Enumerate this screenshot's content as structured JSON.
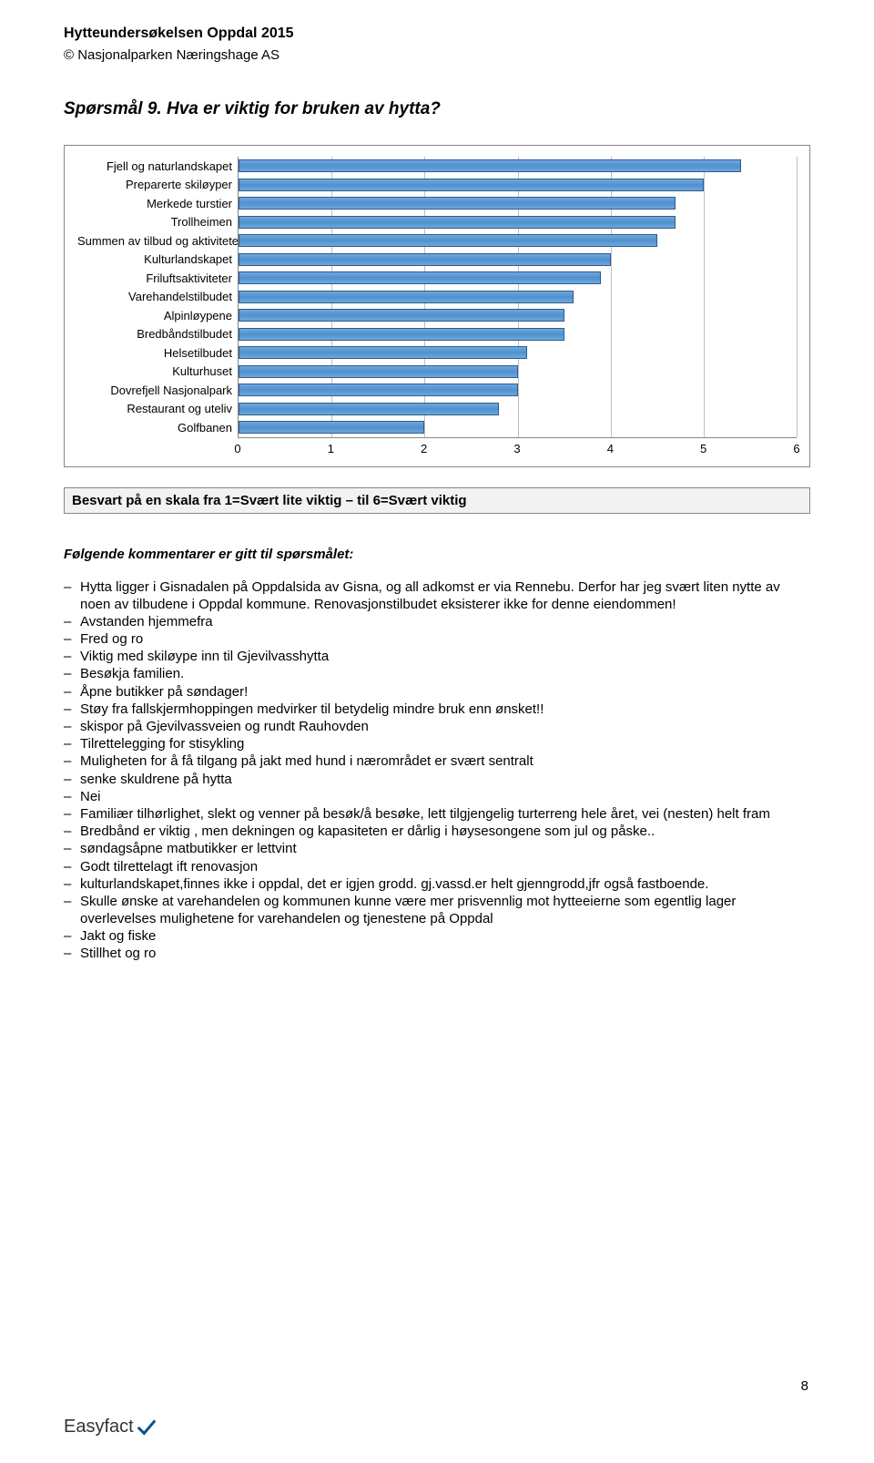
{
  "header": {
    "title": "Hytteundersøkelsen Oppdal 2015",
    "subtitle": "© Nasjonalparken Næringshage AS"
  },
  "question": {
    "title": "Spørsmål 9. Hva er viktig for bruken av hytta?"
  },
  "chart": {
    "type": "bar",
    "xlim": [
      0,
      6
    ],
    "xtick_step": 1,
    "xticks": [
      "0",
      "1",
      "2",
      "3",
      "4",
      "5",
      "6"
    ],
    "bar_color": "#5b9bd5",
    "bar_border": "#2e5c8a",
    "grid_color": "#bfbfbf",
    "axis_color": "#888888",
    "label_fontsize": 13,
    "tick_fontsize": 13,
    "series": [
      {
        "label": "Fjell og naturlandskapet",
        "value": 5.4
      },
      {
        "label": "Preparerte skiløyper",
        "value": 5.0
      },
      {
        "label": "Merkede turstier",
        "value": 4.7
      },
      {
        "label": "Trollheimen",
        "value": 4.7
      },
      {
        "label": "Summen av tilbud og aktiviteter",
        "value": 4.5
      },
      {
        "label": "Kulturlandskapet",
        "value": 4.0
      },
      {
        "label": "Friluftsaktiviteter",
        "value": 3.9
      },
      {
        "label": "Varehandelstilbudet",
        "value": 3.6
      },
      {
        "label": "Alpinløypene",
        "value": 3.5
      },
      {
        "label": "Bredbåndstilbudet",
        "value": 3.5
      },
      {
        "label": "Helsetilbudet",
        "value": 3.1
      },
      {
        "label": "Kulturhuset",
        "value": 3.0
      },
      {
        "label": "Dovrefjell Nasjonalpark",
        "value": 3.0
      },
      {
        "label": "Restaurant og uteliv",
        "value": 2.8
      },
      {
        "label": "Golfbanen",
        "value": 2.0
      }
    ]
  },
  "scale_note": "Besvart på en skala fra 1=Svært lite viktig – til 6=Svært viktig",
  "comments": {
    "heading": "Følgende kommentarer er gitt til spørsmålet:",
    "items": [
      "Hytta ligger i Gisnadalen på Oppdalsida av Gisna, og all adkomst er via Rennebu. Derfor har jeg svært liten nytte av noen av tilbudene i Oppdal kommune. Renovasjonstilbudet eksisterer ikke for denne eiendommen!",
      "Avstanden hjemmefra",
      "Fred og ro",
      "Viktig med skiløype inn til Gjevilvasshytta",
      "Besøkja familien.",
      "Åpne butikker på søndager!",
      "Støy fra fallskjermhoppingen medvirker til betydelig mindre bruk enn ønsket!!",
      "skispor på Gjevilvassveien og rundt Rauhovden",
      "Tilrettelegging for stisykling",
      "Muligheten for å få tilgang på jakt med hund i nærområdet er svært sentralt",
      "senke skuldrene på hytta",
      "Nei",
      "Familiær tilhørlighet, slekt og venner på besøk/å besøke, lett tilgjengelig turterreng hele året, vei (nesten) helt fram",
      "Bredbånd er viktig , men dekningen og kapasiteten er dårlig i høysesongene som jul og påske..",
      "søndagsåpne matbutikker er lettvint",
      "Godt tilrettelagt ift renovasjon",
      "kulturlandskapet,finnes ikke i oppdal, det er igjen grodd. gj.vassd.er helt gjenngrodd,jfr også fastboende.",
      "Skulle ønske at varehandelen og kommunen kunne være mer prisvennlig mot hytteeierne som egentlig lager overlevelses mulighetene for varehandelen og tjenestene  på Oppdal",
      "Jakt og fiske",
      "Stillhet og ro"
    ]
  },
  "page_number": "8",
  "footer_logo_text": "Easyfact"
}
